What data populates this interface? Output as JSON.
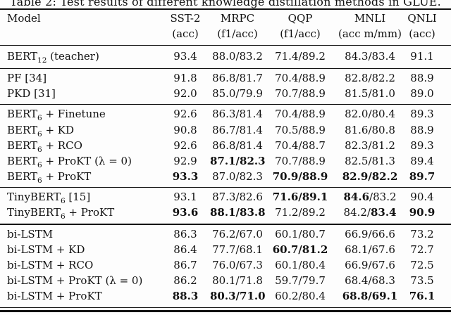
{
  "caption": "Table 2: Test results of different knowledge distillation methods in GLUE.",
  "table": {
    "columns": [
      {
        "name": "Model",
        "metric": ""
      },
      {
        "name": "SST-2",
        "metric": "(acc)"
      },
      {
        "name": "MRPC",
        "metric": "(f1/acc)"
      },
      {
        "name": "QQP",
        "metric": "(f1/acc)"
      },
      {
        "name": "MNLI",
        "metric": "(acc m/mm)"
      },
      {
        "name": "QNLI",
        "metric": "(acc)"
      }
    ],
    "sections": [
      {
        "rows": [
          {
            "model": "BERT~12~ (teacher)",
            "values": [
              "93.4",
              "88.0/83.2",
              "71.4/89.2",
              "84.3/83.4",
              "91.1"
            ]
          }
        ]
      },
      {
        "rows": [
          {
            "model": "PF [34]",
            "values": [
              "91.8",
              "86.8/81.7",
              "70.4/88.9",
              "82.8/82.2",
              "88.9"
            ]
          },
          {
            "model": "PKD [31]",
            "values": [
              "92.0",
              "85.0/79.9",
              "70.7/88.9",
              "81.5/81.0",
              "89.0"
            ]
          }
        ]
      },
      {
        "rows": [
          {
            "model": "BERT~6~ + Finetune",
            "values": [
              "92.6",
              "86.3/81.4",
              "70.4/88.9",
              "82.0/80.4",
              "89.3"
            ]
          },
          {
            "model": "BERT~6~ + KD",
            "values": [
              "90.8",
              "86.7/81.4",
              "70.5/88.9",
              "81.6/80.8",
              "88.9"
            ]
          },
          {
            "model": "BERT~6~ + RCO",
            "values": [
              "92.6",
              "86.8/81.4",
              "70.4/88.7",
              "82.3/81.2",
              "89.3"
            ]
          },
          {
            "model": "BERT~6~ + ProKT (λ = 0)",
            "values": [
              "92.9",
              "**87.1/82.3**",
              "70.7/88.9",
              "82.5/81.3",
              "89.4"
            ]
          },
          {
            "model": "BERT~6~ + ProKT",
            "values": [
              "**93.3**",
              "87.0/82.3",
              "**70.9/88.9**",
              "**82.9/82.2**",
              "**89.7**"
            ]
          }
        ]
      },
      {
        "rows": [
          {
            "model": "TinyBERT~6~ [15]",
            "values": [
              "93.1",
              "87.3/82.6",
              "**71.6/89.1**",
              "**84.6**/83.2",
              "90.4"
            ]
          },
          {
            "model": "TinyBERT~6~ + ProKT",
            "values": [
              "**93.6**",
              "**88.1/83.8**",
              "71.2/89.2",
              "84.2/**83.4**",
              "**90.9**"
            ]
          }
        ]
      },
      {
        "rows": [
          {
            "model": "bi-LSTM",
            "values": [
              "86.3",
              "76.2/67.0",
              "60.1/80.7",
              "66.9/66.6",
              "73.2"
            ]
          },
          {
            "model": "bi-LSTM + KD",
            "values": [
              "86.4",
              "77.7/68.1",
              "**60.7/81.2**",
              "68.1/67.6",
              "72.7"
            ]
          },
          {
            "model": "bi-LSTM + RCO",
            "values": [
              "86.7",
              "76.0/67.3",
              "60.1/80.4",
              "66.9/67.6",
              "72.5"
            ]
          },
          {
            "model": "bi-LSTM + ProKT (λ = 0)",
            "values": [
              "86.2",
              "80.1/71.8",
              "59.7/79.7",
              "68.4/68.3",
              "73.5"
            ]
          },
          {
            "model": "bi-LSTM + ProKT",
            "values": [
              "**88.3**",
              "**80.3/71.0**",
              "60.2/80.4",
              "**68.8/69.1**",
              "**76.1**"
            ]
          }
        ]
      }
    ]
  }
}
